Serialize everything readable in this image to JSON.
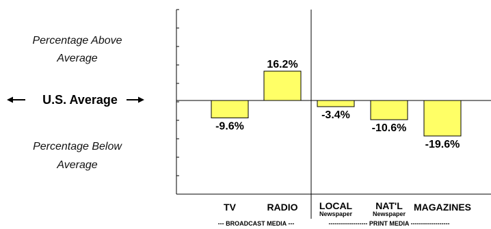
{
  "chart_data": {
    "type": "bar",
    "categories": [
      "TV",
      "RADIO",
      "LOCAL",
      "NAT'L",
      "MAGAZINES"
    ],
    "category_sublabels": [
      "",
      "",
      "Newspaper",
      "Newspaper",
      ""
    ],
    "values": [
      -9.6,
      16.2,
      -3.4,
      -10.6,
      -19.6
    ],
    "value_labels": [
      "-9.6%",
      "16.2%",
      "-3.4%",
      "-10.6%",
      "-19.6%"
    ],
    "groups": [
      {
        "label": "--- BROADCAST MEDIA ---",
        "categories": [
          "TV",
          "RADIO"
        ]
      },
      {
        "label": "------------------- PRINT MEDIA -------------------",
        "categories": [
          "LOCAL",
          "NAT'L",
          "MAGAZINES"
        ]
      }
    ],
    "baseline_label": "U.S. Average",
    "annotations": {
      "above": [
        "Percentage Above",
        "Average"
      ],
      "below": [
        "Percentage Below",
        "Average"
      ]
    },
    "ylim": [
      -25,
      25
    ],
    "bar_color": "#ffff66",
    "legend": "none",
    "grid": false
  }
}
